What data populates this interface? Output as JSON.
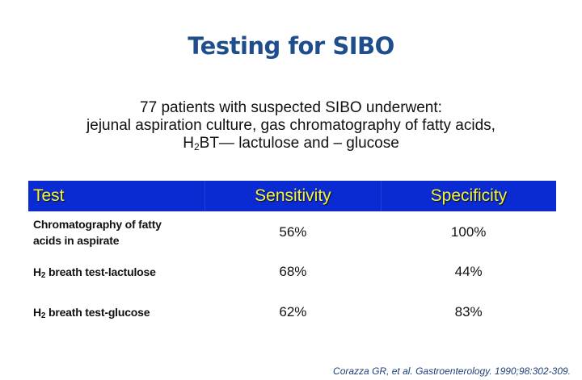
{
  "slide": {
    "title": "Testing for SIBO",
    "intro": {
      "line1": "77 patients with suspected SIBO underwent:",
      "line2": "jejunal aspiration culture, gas chromatography of fatty acids,",
      "line3_prefix": "H",
      "line3_sub": "2",
      "line3_rest": "BT— lactulose and – glucose"
    },
    "table": {
      "headers": [
        "Test",
        "Sensitivity",
        "Specificity"
      ],
      "rows": [
        {
          "test_line1": "Chromatography of fatty",
          "test_line2": "acids in aspirate",
          "sensitivity": "56%",
          "specificity": "100%"
        },
        {
          "test_prefix": "H",
          "test_sub": "2",
          "test_rest": " breath test-lactulose",
          "sensitivity": "68%",
          "specificity": "44%"
        },
        {
          "test_prefix": "H",
          "test_sub": "2",
          "test_rest": " breath test-glucose",
          "sensitivity": "62%",
          "specificity": "83%"
        }
      ]
    },
    "citation": "Corazza GR, et al. Gastroenterology. 1990;98:302-309.",
    "colors": {
      "title": "#1f4e8c",
      "header_bg": "#0a2ad2",
      "header_text": "#f5f53a",
      "citation": "#1f3f7a"
    }
  }
}
